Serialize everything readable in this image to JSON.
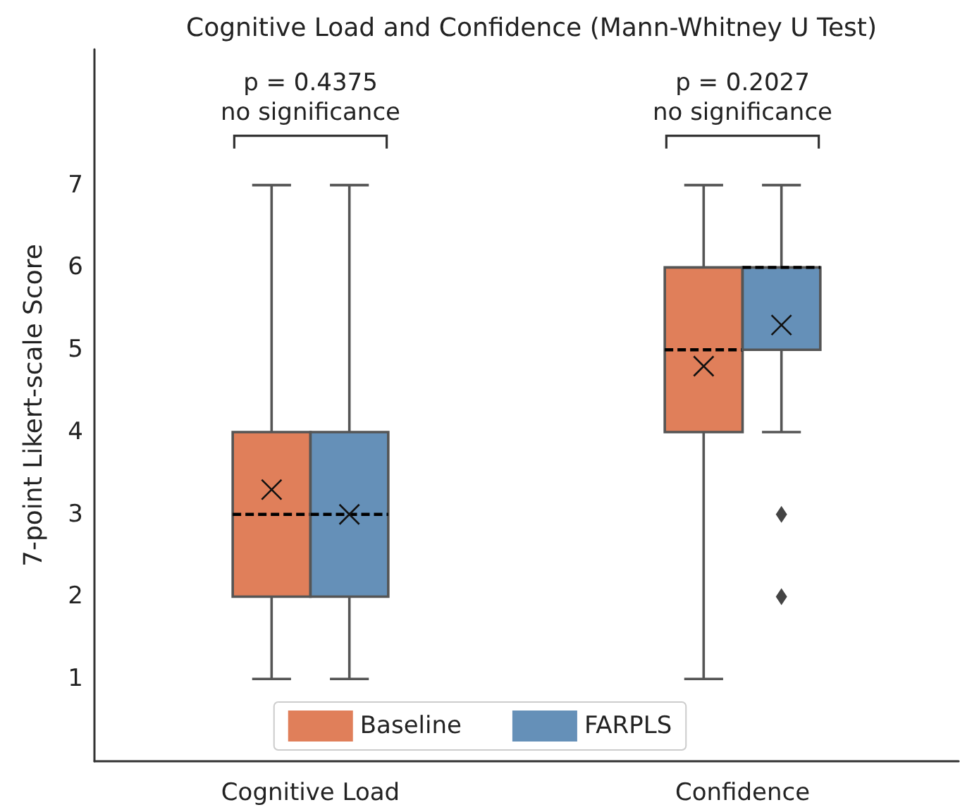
{
  "chart_data": {
    "type": "box",
    "title": "Cognitive Load and Confidence (Mann-Whitney U Test)",
    "ylabel": "7-point Likert-scale Score",
    "categories": [
      "Cognitive Load",
      "Confidence"
    ],
    "series": [
      {
        "name": "Baseline",
        "color": "#e07f5a",
        "boxes": [
          {
            "low": 1,
            "q1": 2,
            "median": 3,
            "q3": 4,
            "high": 7,
            "mean": 3.3
          },
          {
            "low": 1,
            "q1": 4,
            "median": 5,
            "q3": 6,
            "high": 7,
            "mean": 4.8
          }
        ]
      },
      {
        "name": "FARPLS",
        "color": "#6590b8",
        "boxes": [
          {
            "low": 1,
            "q1": 2,
            "median": 3,
            "q3": 4,
            "high": 7,
            "mean": 3.0
          },
          {
            "low": 4,
            "q1": 5,
            "median": 6,
            "q3": 6,
            "high": 7,
            "mean": 5.3,
            "outliers": [
              3,
              2
            ]
          }
        ]
      }
    ],
    "ylim": [
      0,
      8.65
    ],
    "yticks": [
      1,
      2,
      3,
      4,
      5,
      6,
      7
    ],
    "annotations": [
      "p = 0.4375\nno significance",
      "p = 0.2027\nno significance"
    ],
    "legend": "bottom",
    "grid": false,
    "marker": "cross",
    "line_style": "dashed"
  }
}
